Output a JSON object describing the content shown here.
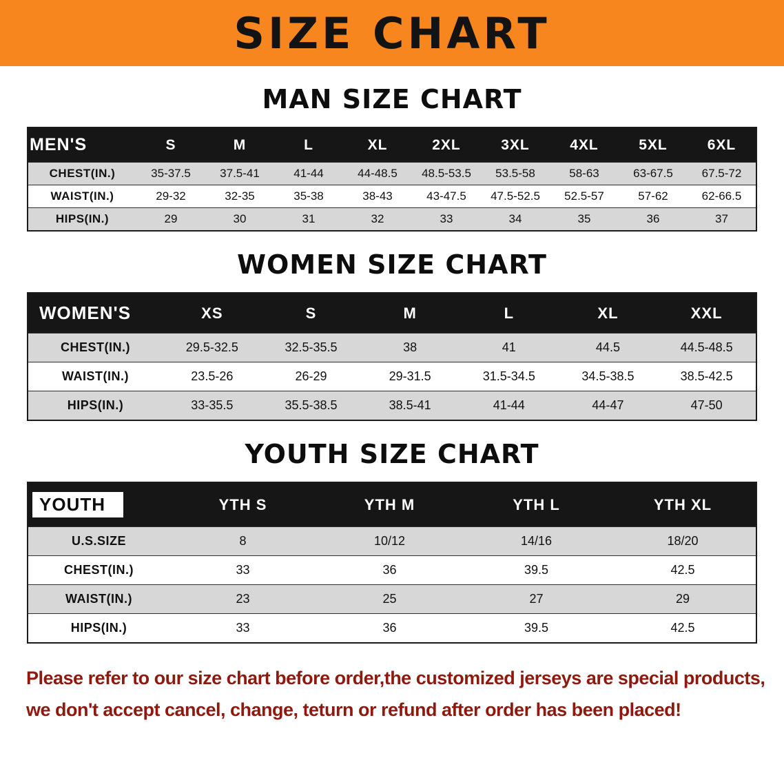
{
  "banner": {
    "title": "SIZE CHART"
  },
  "colors": {
    "banner_bg": "#f6861d",
    "table_header_bg": "#161616",
    "row_shade": "#d7d7d7",
    "footer_text": "#8e1a0f"
  },
  "sections": [
    {
      "id": "men",
      "heading": "MAN SIZE CHART",
      "table": {
        "header": [
          "MEN'S",
          "S",
          "M",
          "L",
          "XL",
          "2XL",
          "3XL",
          "4XL",
          "5XL",
          "6XL"
        ],
        "rows": [
          [
            "CHEST(IN.)",
            "35-37.5",
            "37.5-41",
            "41-44",
            "44-48.5",
            "48.5-53.5",
            "53.5-58",
            "58-63",
            "63-67.5",
            "67.5-72"
          ],
          [
            "WAIST(IN.)",
            "29-32",
            "32-35",
            "35-38",
            "38-43",
            "43-47.5",
            "47.5-52.5",
            "52.5-57",
            "57-62",
            "62-66.5"
          ],
          [
            "HIPS(IN.)",
            "29",
            "30",
            "31",
            "32",
            "33",
            "34",
            "35",
            "36",
            "37"
          ]
        ]
      }
    },
    {
      "id": "women",
      "heading": "WOMEN SIZE CHART",
      "table": {
        "header": [
          "WOMEN'S",
          "XS",
          "S",
          "M",
          "L",
          "XL",
          "XXL"
        ],
        "rows": [
          [
            "CHEST(IN.)",
            "29.5-32.5",
            "32.5-35.5",
            "38",
            "41",
            "44.5",
            "44.5-48.5"
          ],
          [
            "WAIST(IN.)",
            "23.5-26",
            "26-29",
            "29-31.5",
            "31.5-34.5",
            "34.5-38.5",
            "38.5-42.5"
          ],
          [
            "HIPS(IN.)",
            "33-35.5",
            "35.5-38.5",
            "38.5-41",
            "41-44",
            "44-47",
            "47-50"
          ]
        ]
      }
    },
    {
      "id": "youth",
      "heading": "YOUTH SIZE CHART",
      "table": {
        "header": [
          "YOUTH",
          "YTH S",
          "YTH M",
          "YTH L",
          "YTH XL"
        ],
        "rows": [
          [
            "U.S.SIZE",
            "8",
            "10/12",
            "14/16",
            "18/20"
          ],
          [
            "CHEST(IN.)",
            "33",
            "36",
            "39.5",
            "42.5"
          ],
          [
            "WAIST(IN.)",
            "23",
            "25",
            "27",
            "29"
          ],
          [
            "HIPS(IN.)",
            "33",
            "36",
            "39.5",
            "42.5"
          ]
        ]
      }
    }
  ],
  "footer": {
    "lines": [
      "Please refer to our size chart before order,the customized jerseys are special products,",
      "we don't accept cancel, change, teturn or refund after order has been placed!"
    ]
  }
}
